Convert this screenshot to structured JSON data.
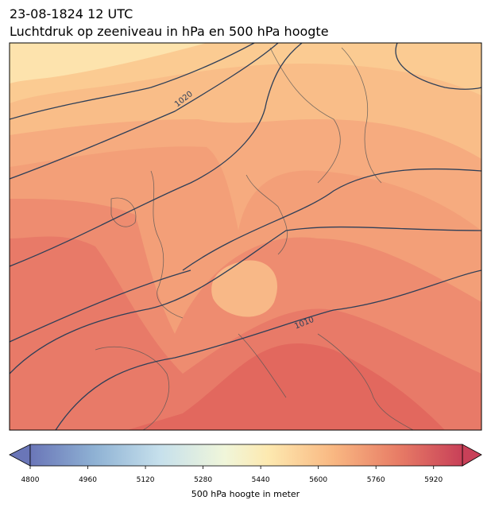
{
  "header": {
    "title_lines": [
      "23-08-1824 12 UTC",
      "Luchtdruk op zeeniveau in hPa en 500 hPa hoogte"
    ]
  },
  "map": {
    "contour_labels": [
      "1020",
      "1010"
    ]
  },
  "colorbar": {
    "label": "500 hPa hoogte in meter",
    "lim": [
      4800,
      6000
    ],
    "ticks": [
      4800,
      4960,
      5120,
      5280,
      5440,
      5600,
      5760,
      5920
    ]
  }
}
